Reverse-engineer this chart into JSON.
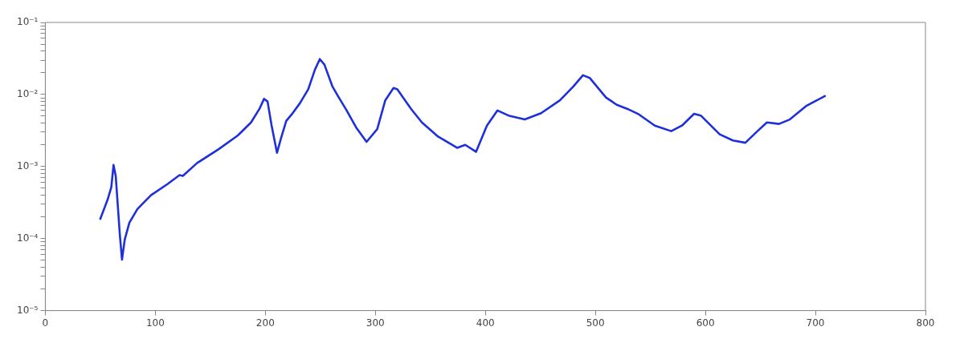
{
  "chart_data": {
    "type": "line",
    "log": "y",
    "grid": false,
    "legend": false,
    "marker": "none",
    "line_style": "solid",
    "xlim": [
      0,
      800
    ],
    "xticks": [
      0,
      100,
      200,
      300,
      400,
      500,
      600,
      700,
      800
    ],
    "ylim": [
      1e-05,
      0.1
    ],
    "yticks": [
      {
        "value": 1e-05,
        "label": "10⁻⁵"
      },
      {
        "value": 2e-05,
        "label": null
      },
      {
        "value": 3e-05,
        "label": null
      },
      {
        "value": 4e-05,
        "label": null
      },
      {
        "value": 5e-05,
        "label": null
      },
      {
        "value": 6e-05,
        "label": null
      },
      {
        "value": 7e-05,
        "label": null
      },
      {
        "value": 8e-05,
        "label": null
      },
      {
        "value": 9e-05,
        "label": null
      },
      {
        "value": 0.0001,
        "label": "10⁻⁴"
      },
      {
        "value": 0.0002,
        "label": null
      },
      {
        "value": 0.0003,
        "label": null
      },
      {
        "value": 0.0004,
        "label": null
      },
      {
        "value": 0.0005,
        "label": null
      },
      {
        "value": 0.0006,
        "label": null
      },
      {
        "value": 0.0007,
        "label": null
      },
      {
        "value": 0.0008,
        "label": null
      },
      {
        "value": 0.0009,
        "label": null
      },
      {
        "value": 0.001,
        "label": "10⁻³"
      },
      {
        "value": 0.002,
        "label": null
      },
      {
        "value": 0.003,
        "label": null
      },
      {
        "value": 0.004,
        "label": null
      },
      {
        "value": 0.005,
        "label": null
      },
      {
        "value": 0.006,
        "label": null
      },
      {
        "value": 0.007,
        "label": null
      },
      {
        "value": 0.008,
        "label": null
      },
      {
        "value": 0.009,
        "label": null
      },
      {
        "value": 0.01,
        "label": "10⁻²"
      },
      {
        "value": 0.02,
        "label": null
      },
      {
        "value": 0.03,
        "label": null
      },
      {
        "value": 0.04,
        "label": null
      },
      {
        "value": 0.05,
        "label": null
      },
      {
        "value": 0.06,
        "label": null
      },
      {
        "value": 0.07,
        "label": null
      },
      {
        "value": 0.08,
        "label": null
      },
      {
        "value": 0.09,
        "label": null
      },
      {
        "value": 0.1,
        "label": "10⁻¹"
      }
    ],
    "series": [
      {
        "color": "#1f2fd9",
        "x": [
          50,
          56.7,
          60,
          62,
          64,
          67.7,
          69.7,
          72.2,
          76.4,
          83.7,
          96,
          111,
          122,
          125,
          138,
          157.6,
          175,
          187,
          194.6,
          198.8,
          202,
          205.7,
          210.6,
          214,
          219,
          224,
          231.5,
          239,
          245,
          249.5,
          253.7,
          261,
          266,
          273.4,
          283,
          292,
          301.7,
          309,
          316.5,
          320,
          332.5,
          342.3,
          357,
          374.3,
          381.7,
          391.5,
          401.4,
          411,
          421,
          435.8,
          450.6,
          467.8,
          480,
          488.7,
          494.8,
          509.6,
          519.4,
          529.2,
          539.5,
          554,
          568.9,
          578.7,
          589.7,
          595.8,
          613,
          625,
          636.3,
          647.3,
          655.9,
          666.9,
          676.7,
          691.4,
          708.6
        ],
        "values": [
          0.000188,
          0.00035,
          0.00052,
          0.00105,
          0.00074,
          0.000115,
          5.1e-05,
          9.7e-05,
          0.000166,
          0.000257,
          0.0004,
          0.00057,
          0.00076,
          0.00074,
          0.00112,
          0.00174,
          0.0027,
          0.0041,
          0.0063,
          0.0087,
          0.008,
          0.0037,
          0.00155,
          0.0024,
          0.0043,
          0.0053,
          0.0076,
          0.0118,
          0.022,
          0.031,
          0.026,
          0.0129,
          0.0095,
          0.0062,
          0.0034,
          0.0022,
          0.0033,
          0.0083,
          0.0123,
          0.0118,
          0.0063,
          0.0041,
          0.0026,
          0.00182,
          0.002,
          0.0016,
          0.0037,
          0.006,
          0.0051,
          0.0045,
          0.0055,
          0.0083,
          0.0129,
          0.0185,
          0.017,
          0.0091,
          0.0072,
          0.0063,
          0.0053,
          0.0037,
          0.0031,
          0.0037,
          0.0054,
          0.0051,
          0.0028,
          0.0023,
          0.00214,
          0.0031,
          0.0041,
          0.0039,
          0.0045,
          0.0069,
          0.0095
        ]
      }
    ]
  }
}
